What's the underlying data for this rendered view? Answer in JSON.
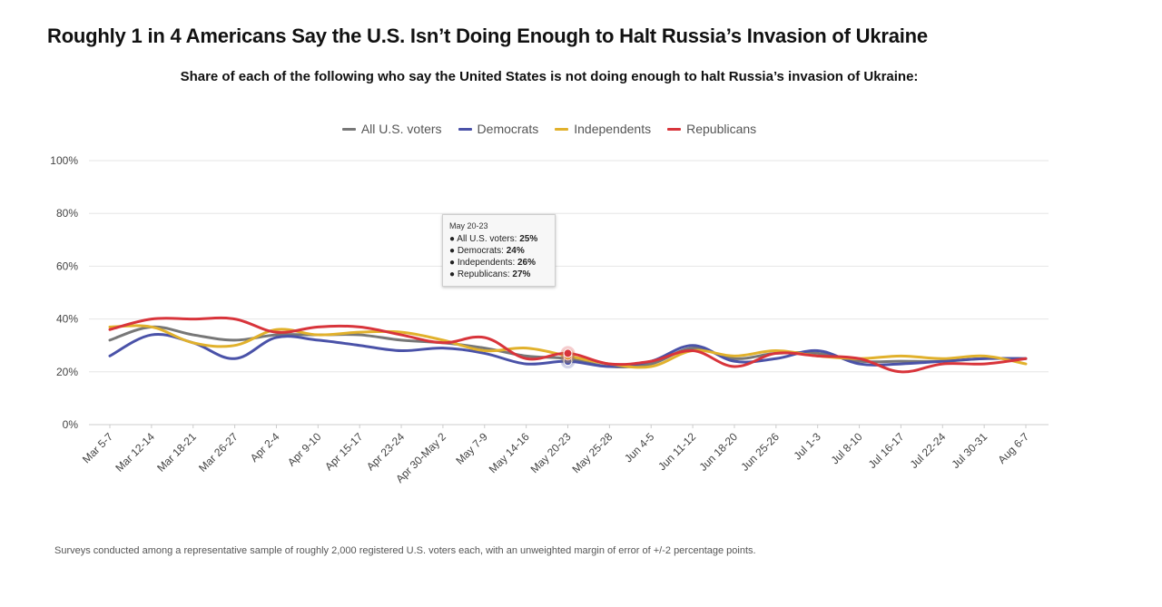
{
  "title": "Roughly 1 in 4 Americans Say the U.S. Isn’t Doing Enough to Halt Russia’s Invasion of Ukraine",
  "subtitle": "Share of each of the following who say the United States is not doing enough to halt Russia’s invasion of Ukraine:",
  "footnote": "Surveys conducted among a representative sample of roughly 2,000 registered U.S. voters each, with an unweighted margin of error of +/-2 percentage points.",
  "tooltip": {
    "date": "May 20-23",
    "rows": [
      {
        "label": "All U.S. voters:",
        "value": "25%"
      },
      {
        "label": "Democrats:",
        "value": "24%"
      },
      {
        "label": "Independents:",
        "value": "26%"
      },
      {
        "label": "Republicans:",
        "value": "27%"
      }
    ]
  },
  "chart_data": {
    "type": "line",
    "title": "Roughly 1 in 4 Americans Say the U.S. Isn’t Doing Enough to Halt Russia’s Invasion of Ukraine",
    "subtitle": "Share of each of the following who say the United States is not doing enough to halt Russia’s invasion of Ukraine:",
    "xlabel": "",
    "ylabel": "",
    "ylim": [
      0,
      100
    ],
    "y_ticks": [
      "0%",
      "20%",
      "40%",
      "60%",
      "80%",
      "100%"
    ],
    "y_tick_values": [
      0,
      20,
      40,
      60,
      80,
      100
    ],
    "grid": true,
    "legend_position": "top-center",
    "x": [
      "Mar 5-7",
      "Mar 12-14",
      "Mar 18-21",
      "Mar 26-27",
      "Apr 2-4",
      "Apr 9-10",
      "Apr 15-17",
      "Apr 23-24",
      "Apr 30-May 2",
      "May 7-9",
      "May 14-16",
      "May 20-23",
      "May 25-28",
      "Jun 4-5",
      "Jun 11-12",
      "Jun 18-20",
      "Jun 25-26",
      "Jul 1-3",
      "Jul 8-10",
      "Jul 16-17",
      "Jul 22-24",
      "Jul 30-31",
      "Aug 6-7"
    ],
    "highlight_index": 11,
    "series": [
      {
        "name": "All U.S. voters",
        "color": "#777777",
        "values": [
          32,
          37,
          34,
          32,
          34,
          34,
          34,
          32,
          31,
          29,
          26,
          25,
          22,
          23,
          29,
          25,
          27,
          27,
          24,
          24,
          24,
          25,
          25
        ]
      },
      {
        "name": "Democrats",
        "color": "#4a52a8",
        "values": [
          26,
          34,
          31,
          25,
          33,
          32,
          30,
          28,
          29,
          27,
          23,
          24,
          22,
          24,
          30,
          24,
          25,
          28,
          23,
          23,
          24,
          25,
          25
        ]
      },
      {
        "name": "Independents",
        "color": "#e1b12c",
        "values": [
          37,
          37,
          31,
          30,
          36,
          34,
          35,
          35,
          32,
          28,
          29,
          26,
          23,
          22,
          28,
          26,
          28,
          26,
          25,
          26,
          25,
          26,
          23
        ]
      },
      {
        "name": "Republicans",
        "color": "#d8343b",
        "values": [
          36,
          40,
          40,
          40,
          35,
          37,
          37,
          34,
          31,
          33,
          25,
          27,
          23,
          24,
          28,
          22,
          27,
          26,
          25,
          20,
          23,
          23,
          25
        ]
      }
    ]
  }
}
